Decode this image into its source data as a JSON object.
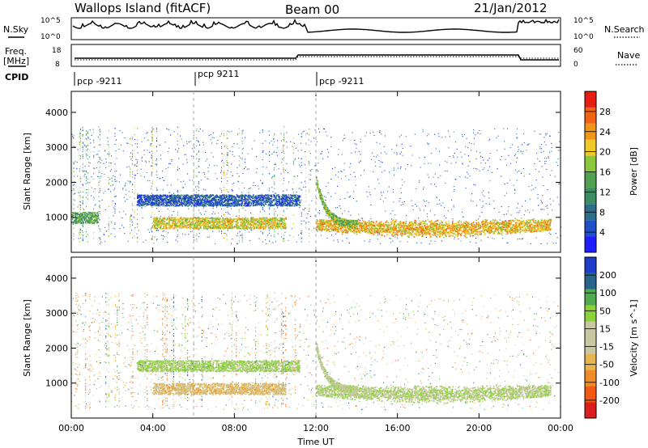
{
  "header": {
    "station": "Wallops Island (fitACF)",
    "beam": "Beam 00",
    "date": "21/Jan/2012"
  },
  "side_labels": {
    "nsky": "N.Sky",
    "nsearch": "N.Search",
    "freq_line1": "Freq.",
    "freq_line2": "[MHz]",
    "nave": "Nave",
    "cpid": "CPID"
  },
  "noise_axis": {
    "left_top": "10^5",
    "left_bottom": "10^0",
    "right_top": "10^5",
    "right_bottom": "10^0"
  },
  "freq_axis": {
    "left_top": "18",
    "left_bottom": "8",
    "right_top": "60",
    "right_bottom": "0"
  },
  "cpid_segments": [
    {
      "label": "pcp -9211",
      "start": 0
    },
    {
      "label": "pcp 9211",
      "start": 6
    },
    {
      "label": "pcp -9211",
      "start": 12
    }
  ],
  "colors": {
    "power_scale": [
      "#1e1eff",
      "#1e50c8",
      "#2d6e8c",
      "#3c8c64",
      "#50a050",
      "#8cc83c",
      "#f0c828",
      "#f09614",
      "#f06414",
      "#e61e14"
    ],
    "velocity_scale": [
      "#dc1e1e",
      "#f05a14",
      "#f08c28",
      "#e6b450",
      "#c8c8a0",
      "#c8c8a0",
      "#8cd23c",
      "#50aa50",
      "#28648c",
      "#1e3cc8"
    ]
  },
  "chart_data": [
    {
      "type": "heatmap",
      "title": "",
      "xlabel": "Time UT",
      "ylabel": "Slant Range [km]",
      "x_ticks": [
        "00:00",
        "04:00",
        "08:00",
        "12:00",
        "16:00",
        "20:00",
        "00:00"
      ],
      "x_range_hours": [
        0,
        24
      ],
      "y_ticks": [
        1000,
        2000,
        3000,
        4000
      ],
      "ylim": [
        0,
        4600
      ],
      "colorbar": {
        "label": "Power [dB]",
        "ticks": [
          4,
          8,
          12,
          16,
          20,
          24,
          28
        ],
        "range": [
          0,
          32
        ]
      },
      "echo_bands": [
        {
          "t_start": 3.2,
          "t_end": 11.2,
          "range_km": 1500,
          "power_db": 6
        },
        {
          "t_start": 4.0,
          "t_end": 10.5,
          "range_km": 850,
          "power_db": 20
        },
        {
          "t_start": 0.0,
          "t_end": 1.3,
          "range_km": 1000,
          "power_db": 14
        },
        {
          "t_start": 12.0,
          "t_end": 23.5,
          "range_km": 800,
          "power_db": 22
        }
      ]
    },
    {
      "type": "heatmap",
      "title": "",
      "xlabel": "Time UT",
      "ylabel": "Slant Range [km]",
      "x_ticks": [
        "00:00",
        "04:00",
        "08:00",
        "12:00",
        "16:00",
        "20:00",
        "00:00"
      ],
      "x_range_hours": [
        0,
        24
      ],
      "y_ticks": [
        1000,
        2000,
        3000,
        4000
      ],
      "ylim": [
        0,
        4600
      ],
      "colorbar": {
        "label": "Velocity [m s^-1]",
        "ticks": [
          200,
          100,
          50,
          15,
          -15,
          -50,
          -100,
          -200
        ],
        "range": [
          -250,
          250
        ]
      },
      "echo_bands": [
        {
          "t_start": 3.2,
          "t_end": 11.2,
          "range_km": 1500,
          "velocity": 60
        },
        {
          "t_start": 4.0,
          "t_end": 10.5,
          "range_km": 850,
          "velocity": -60
        },
        {
          "t_start": 12.0,
          "t_end": 23.5,
          "range_km": 800,
          "velocity": 40
        }
      ]
    }
  ]
}
